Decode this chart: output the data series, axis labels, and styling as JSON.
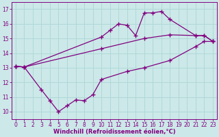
{
  "line1_x": [
    0,
    1,
    10,
    11,
    12,
    13,
    14,
    15,
    16,
    17,
    18,
    21,
    22,
    23
  ],
  "line1_y": [
    13.1,
    13.05,
    15.1,
    15.55,
    16.0,
    15.9,
    15.2,
    16.75,
    16.75,
    16.85,
    16.3,
    15.2,
    15.2,
    14.8
  ],
  "line2_x": [
    0,
    1,
    10,
    15,
    18,
    21,
    22,
    23
  ],
  "line2_y": [
    13.1,
    13.05,
    14.3,
    15.0,
    15.25,
    15.2,
    15.2,
    14.8
  ],
  "line3_x": [
    0,
    1,
    3,
    4,
    5,
    6,
    7,
    8,
    9,
    10,
    13,
    15,
    18,
    21,
    22,
    23
  ],
  "line3_y": [
    13.1,
    13.05,
    11.5,
    10.75,
    10.0,
    10.4,
    10.8,
    10.75,
    11.15,
    12.2,
    12.75,
    13.0,
    13.5,
    14.45,
    14.8,
    14.8
  ],
  "line_color": "#800080",
  "marker": "+",
  "markersize": 4,
  "linewidth": 0.9,
  "bg_color": "#cce8e8",
  "grid_color": "#b0d8d8",
  "xlabel": "Windchill (Refroidissement éolien,°C)",
  "xlabel_color": "#800080",
  "tick_color": "#800080",
  "xlim": [
    -0.5,
    23.5
  ],
  "ylim": [
    9.5,
    17.5
  ],
  "yticks": [
    10,
    11,
    12,
    13,
    14,
    15,
    16,
    17
  ],
  "xticks": [
    0,
    1,
    2,
    3,
    4,
    5,
    6,
    7,
    8,
    9,
    10,
    11,
    12,
    13,
    14,
    15,
    16,
    17,
    18,
    19,
    20,
    21,
    22,
    23
  ],
  "tick_fontsize": 5.5,
  "xlabel_fontsize": 6.0
}
